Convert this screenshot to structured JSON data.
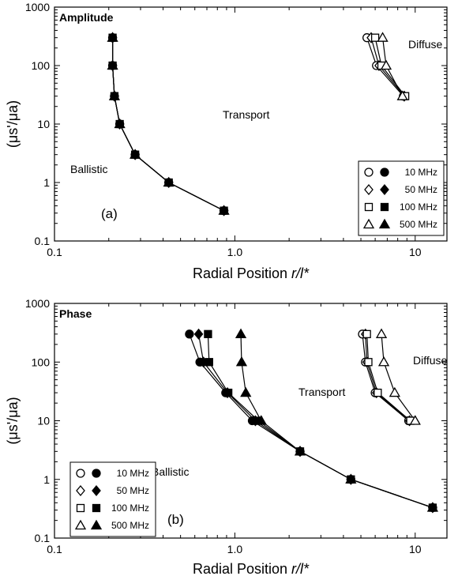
{
  "chart_data": [
    {
      "type": "line",
      "title": "Amplitude",
      "panel_label": "(a)",
      "xlabel_prefix": "Radial Position ",
      "xlabel_var": "r/l*",
      "ylabel": "(μs'/μa)",
      "xscale": "log",
      "yscale": "log",
      "xlim": [
        0.1,
        15
      ],
      "ylim": [
        0.1,
        1000
      ],
      "x_ticks": [
        "0.1",
        "1.0",
        "10"
      ],
      "y_ticks": [
        "0.1",
        "1",
        "10",
        "100",
        "1000"
      ],
      "regions": [
        "Ballistic",
        "Transport",
        "Diffuse"
      ],
      "legend": {
        "position": "lower-right",
        "entries": [
          "10 MHz",
          "50 MHz",
          "100 MHz",
          "500 MHz"
        ]
      },
      "series": [
        {
          "label": "10 MHz",
          "marker": "circle",
          "filled": true,
          "x": [
            0.21,
            0.21,
            0.215,
            0.23,
            0.28,
            0.43,
            0.87
          ],
          "y": [
            300,
            100,
            30,
            10,
            3,
            1,
            0.33
          ]
        },
        {
          "label": "50 MHz",
          "marker": "diamond",
          "filled": true,
          "x": [
            0.21,
            0.21,
            0.215,
            0.23,
            0.28,
            0.43,
            0.87
          ],
          "y": [
            300,
            100,
            30,
            10,
            3,
            1,
            0.33
          ]
        },
        {
          "label": "100 MHz",
          "marker": "square",
          "filled": true,
          "x": [
            0.21,
            0.21,
            0.215,
            0.23,
            0.28,
            0.43,
            0.87
          ],
          "y": [
            300,
            100,
            30,
            10,
            3,
            1,
            0.33
          ]
        },
        {
          "label": "500 MHz",
          "marker": "triangle",
          "filled": true,
          "x": [
            0.21,
            0.21,
            0.215,
            0.23,
            0.28,
            0.43,
            0.87
          ],
          "y": [
            300,
            100,
            30,
            10,
            3,
            1,
            0.33
          ]
        },
        {
          "label": "10 MHz",
          "marker": "circle",
          "filled": false,
          "x": [
            5.4,
            6.1,
            8.6
          ],
          "y": [
            300,
            100,
            30
          ]
        },
        {
          "label": "50 MHz",
          "marker": "diamond",
          "filled": false,
          "x": [
            5.7,
            6.3,
            8.7
          ],
          "y": [
            300,
            100,
            30
          ]
        },
        {
          "label": "100 MHz",
          "marker": "square",
          "filled": false,
          "x": [
            6.0,
            6.5,
            8.8
          ],
          "y": [
            300,
            100,
            30
          ]
        },
        {
          "label": "500 MHz",
          "marker": "triangle",
          "filled": false,
          "x": [
            6.6,
            6.9,
            8.5
          ],
          "y": [
            300,
            100,
            30
          ]
        }
      ]
    },
    {
      "type": "line",
      "title": "Phase",
      "panel_label": "(b)",
      "xlabel_prefix": "Radial Position ",
      "xlabel_var": "r/l*",
      "ylabel": "(μs'/μa)",
      "xscale": "log",
      "yscale": "log",
      "xlim": [
        0.1,
        15
      ],
      "ylim": [
        0.1,
        1000
      ],
      "x_ticks": [
        "0.1",
        "1.0",
        "10"
      ],
      "y_ticks": [
        "0.1",
        "1",
        "10",
        "100",
        "1000"
      ],
      "regions": [
        "Ballistic",
        "Transport",
        "Diffuse"
      ],
      "legend": {
        "position": "lower-left",
        "entries": [
          "10 MHz",
          "50 MHz",
          "100 MHz",
          "500 MHz"
        ]
      },
      "series": [
        {
          "label": "10 MHz",
          "marker": "circle",
          "filled": true,
          "x": [
            0.56,
            0.64,
            0.89,
            1.25,
            2.3,
            4.4,
            12.5
          ],
          "y": [
            300,
            100,
            30,
            10,
            3,
            1,
            0.33
          ]
        },
        {
          "label": "50 MHz",
          "marker": "diamond",
          "filled": true,
          "x": [
            0.63,
            0.67,
            0.91,
            1.3,
            2.3,
            4.4,
            12.5
          ],
          "y": [
            300,
            100,
            30,
            10,
            3,
            1,
            0.33
          ]
        },
        {
          "label": "100 MHz",
          "marker": "square",
          "filled": true,
          "x": [
            0.71,
            0.72,
            0.92,
            1.35,
            2.3,
            4.4,
            12.5
          ],
          "y": [
            300,
            100,
            30,
            10,
            3,
            1,
            0.33
          ]
        },
        {
          "label": "500 MHz",
          "marker": "triangle",
          "filled": true,
          "x": [
            1.08,
            1.09,
            1.15,
            1.4,
            2.3,
            4.4,
            12.5
          ],
          "y": [
            300,
            100,
            30,
            10,
            3,
            1,
            0.33
          ]
        },
        {
          "label": "10 MHz",
          "marker": "circle",
          "filled": false,
          "x": [
            5.1,
            5.3,
            6.0,
            9.2
          ],
          "y": [
            300,
            100,
            30,
            10
          ]
        },
        {
          "label": "50 MHz",
          "marker": "diamond",
          "filled": false,
          "x": [
            5.3,
            5.4,
            6.1,
            9.3
          ],
          "y": [
            300,
            100,
            30,
            10
          ]
        },
        {
          "label": "100 MHz",
          "marker": "square",
          "filled": false,
          "x": [
            5.4,
            5.5,
            6.2,
            9.4
          ],
          "y": [
            300,
            100,
            30,
            10
          ]
        },
        {
          "label": "500 MHz",
          "marker": "triangle",
          "filled": false,
          "x": [
            6.5,
            6.7,
            7.7,
            10.0
          ],
          "y": [
            300,
            100,
            30,
            10
          ]
        }
      ]
    }
  ]
}
